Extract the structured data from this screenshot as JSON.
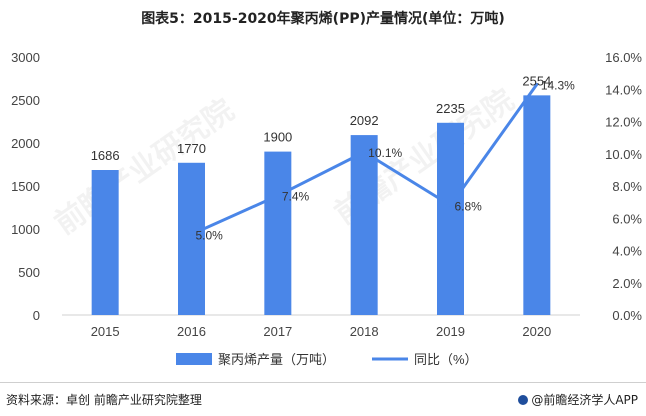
{
  "title": "图表5：2015-2020年聚丙烯(PP)产量情况(单位：万吨)",
  "source": "资料来源：卓创 前瞻产业研究院整理",
  "brand": "@前瞻经济学人APP",
  "watermark": "前瞻产业研究院",
  "colors": {
    "bar": "#4a86e8",
    "line": "#4a86e8",
    "axis": "#d0d0d0",
    "text": "#444444"
  },
  "chart_data": {
    "type": "bar",
    "categories": [
      "2015",
      "2016",
      "2017",
      "2018",
      "2019",
      "2020"
    ],
    "series": [
      {
        "name": "聚丙烯产量（万吨）",
        "type": "bar",
        "axis": "left",
        "values": [
          1686,
          1770,
          1900,
          2092,
          2235,
          2554
        ],
        "labels": [
          "1686",
          "1770",
          "1900",
          "2092",
          "2235",
          "2554"
        ]
      },
      {
        "name": "同比（%）",
        "type": "line",
        "axis": "right",
        "values": [
          null,
          5.0,
          7.4,
          10.1,
          6.8,
          14.3
        ],
        "labels": [
          "",
          "5.0%",
          "7.4%",
          "10.1%",
          "6.8%",
          "14.3%"
        ]
      }
    ],
    "ylim_left": [
      0,
      3000
    ],
    "yticks_left": [
      "0",
      "500",
      "1000",
      "1500",
      "2000",
      "2500",
      "3000"
    ],
    "ylim_right": [
      0,
      16
    ],
    "yticks_right": [
      "0.0%",
      "2.0%",
      "4.0%",
      "6.0%",
      "8.0%",
      "10.0%",
      "12.0%",
      "14.0%",
      "16.0%"
    ],
    "legend_position": "bottom"
  }
}
